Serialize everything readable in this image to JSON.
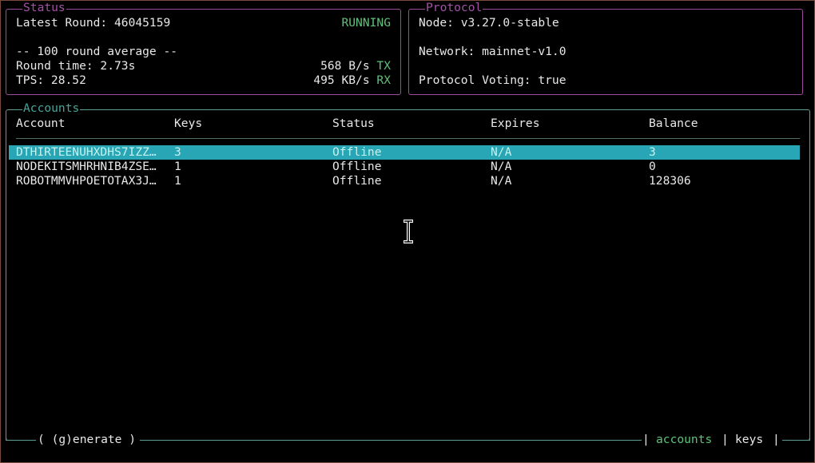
{
  "status": {
    "title": "Status",
    "latest_round_label": "Latest Round: 46045159",
    "state": "RUNNING",
    "average_header": "-- 100 round average --",
    "round_time": "Round time: 2.73s",
    "tps": "TPS: 28.52",
    "tx_value": "568 B/s",
    "tx_label": "TX",
    "rx_value": "495 KB/s",
    "rx_label": "RX"
  },
  "protocol": {
    "title": "Protocol",
    "node": "Node: v3.27.0-stable",
    "network": "Network: mainnet-v1.0",
    "voting": "Protocol Voting: true"
  },
  "accounts": {
    "title": "Accounts",
    "columns": [
      "Account",
      "Keys",
      "Status",
      "Expires",
      "Balance"
    ],
    "rows": [
      {
        "account": "DTHIRTEENUHXDHS7IZZ…",
        "keys": "3",
        "status": "Offline",
        "expires": "N/A",
        "balance": "3",
        "selected": true
      },
      {
        "account": "NODEKITSMHRHNIB4ZSE…",
        "keys": "1",
        "status": "Offline",
        "expires": "N/A",
        "balance": "0"
      },
      {
        "account": "ROBOTMMVHPOETOTAX3J…",
        "keys": "1",
        "status": "Offline",
        "expires": "N/A",
        "balance": "128306"
      }
    ]
  },
  "footer": {
    "generate": "( (g)enerate )",
    "tab_accounts": "accounts",
    "tab_keys": "keys",
    "sep": "|"
  },
  "colors": {
    "accent_green": "#5fc27a",
    "selection": "#28a6b6",
    "panel_border_top": "#9c4c9a",
    "panel_border_accounts": "#5f9e94"
  },
  "cursor": {
    "icon": "text-cursor-ibeam-icon"
  }
}
